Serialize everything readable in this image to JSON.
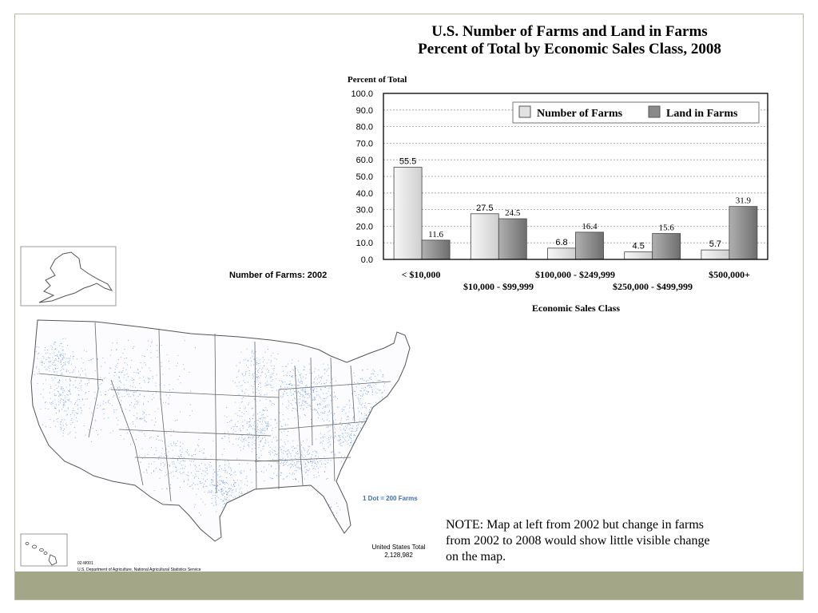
{
  "chart_data": {
    "type": "bar",
    "title": "U.S. Number of Farms and Land in Farms",
    "subtitle": "Percent of Total by Economic Sales Class, 2008",
    "ylabel": "Percent of Total",
    "xlabel": "Economic Sales Class",
    "ylim": [
      0,
      100
    ],
    "yticks": [
      "100.0",
      "90.0",
      "80.0",
      "70.0",
      "60.0",
      "50.0",
      "40.0",
      "30.0",
      "20.0",
      "10.0",
      "0.0"
    ],
    "grid": true,
    "legend_position": "top-right",
    "categories": [
      "< $10,000",
      "$10,000 - $99,999",
      "$100,000 - $249,999",
      "$250,000 - $499,999",
      "$500,000+"
    ],
    "series": [
      {
        "name": "Number of Farms",
        "values": [
          55.5,
          27.5,
          6.8,
          4.5,
          5.7
        ],
        "labels": [
          "55.5",
          "27.5",
          "6.8",
          "4.5",
          "5.7"
        ],
        "color": "#e2e2e2"
      },
      {
        "name": "Land in Farms",
        "values": [
          11.6,
          24.5,
          16.4,
          15.6,
          31.9
        ],
        "labels": [
          "11.6",
          "24.5",
          "16.4",
          "15.6",
          "31.9"
        ],
        "color": "#8a8a8a"
      }
    ]
  },
  "map": {
    "title": "Number of Farms:  2002",
    "legend": "1 Dot = 200 Farms",
    "total_label": "United States Total",
    "total_value": "2,128,982",
    "code": "02-M001",
    "source": "U.S. Department of Agriculture, National Agricultural Statistics Service",
    "dot_color": "#6f9fdc"
  },
  "note": "NOTE: Map at left from 2002 but change in farms from 2002 to 2008 would show little visible change on the map.",
  "colors": {
    "footer": "#a3a687",
    "border": "#b9b9a6"
  }
}
